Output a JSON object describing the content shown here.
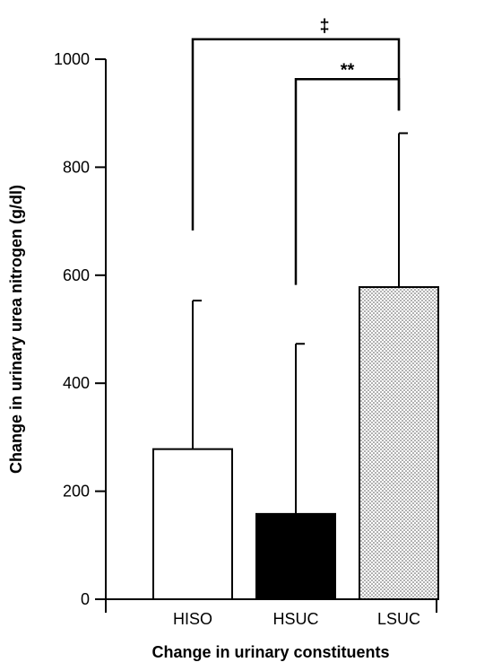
{
  "chart_data": {
    "type": "bar",
    "categories": [
      "HISO",
      "HSUC",
      "LSUC"
    ],
    "values": [
      278,
      158,
      578
    ],
    "error_upper": [
      553,
      473,
      863
    ],
    "ylim": [
      0,
      1000
    ],
    "yticks": [
      "0",
      "200",
      "400",
      "600",
      "800",
      "1000"
    ],
    "ytick_values": [
      0,
      200,
      400,
      600,
      800,
      1000
    ],
    "xlabel": "Change in urinary constituents",
    "ylabel": "Change in urinary urea nitrogen (g/dl)",
    "bar_fills": [
      "white",
      "black",
      "dotted"
    ],
    "significance": [
      {
        "from": "HISO",
        "to": "LSUC",
        "label": "‡",
        "y_left": 683,
        "y_right": 905,
        "y_top": 1037
      },
      {
        "from": "HSUC",
        "to": "LSUC",
        "label": "**",
        "y_left": 582,
        "y_right": 905,
        "y_top": 963
      }
    ]
  },
  "colors": {
    "axis": "#000000",
    "bar_outline": "#000000",
    "hsuc_fill": "#000000",
    "dot_color": "#555555"
  }
}
